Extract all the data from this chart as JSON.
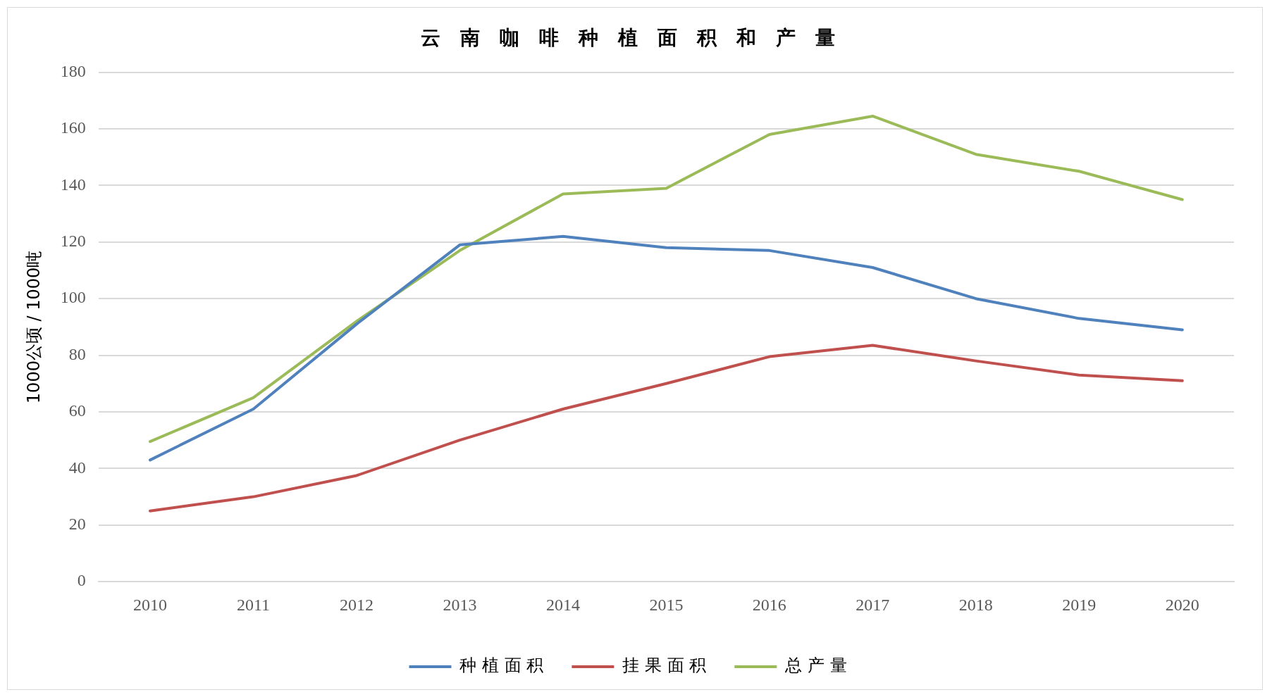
{
  "chart_data": {
    "type": "line",
    "title": "云南咖啡种植面积和产量",
    "ylabel": "1000公顷 / 1000吨",
    "categories": [
      "2010",
      "2011",
      "2012",
      "2013",
      "2014",
      "2015",
      "2016",
      "2017",
      "2018",
      "2019",
      "2020"
    ],
    "series": [
      {
        "name": "种植面积",
        "color": "#4f81bd",
        "values": [
          43,
          61,
          91,
          119,
          122,
          118,
          117,
          111,
          100,
          93,
          89
        ]
      },
      {
        "name": "挂果面积",
        "color": "#c0504d",
        "values": [
          25,
          30,
          37.5,
          50,
          61,
          70,
          79.5,
          83.5,
          78,
          73,
          71
        ]
      },
      {
        "name": "总产量",
        "color": "#9bbb59",
        "values": [
          49.5,
          65,
          92,
          117,
          137,
          139,
          158,
          164.5,
          151,
          145,
          135
        ]
      }
    ],
    "ylim": [
      0,
      180
    ],
    "yticks": [
      0,
      20,
      40,
      60,
      80,
      100,
      120,
      140,
      160,
      180
    ],
    "grid": "y",
    "legend": "bottom",
    "marker": "none",
    "line_style": "solid"
  }
}
